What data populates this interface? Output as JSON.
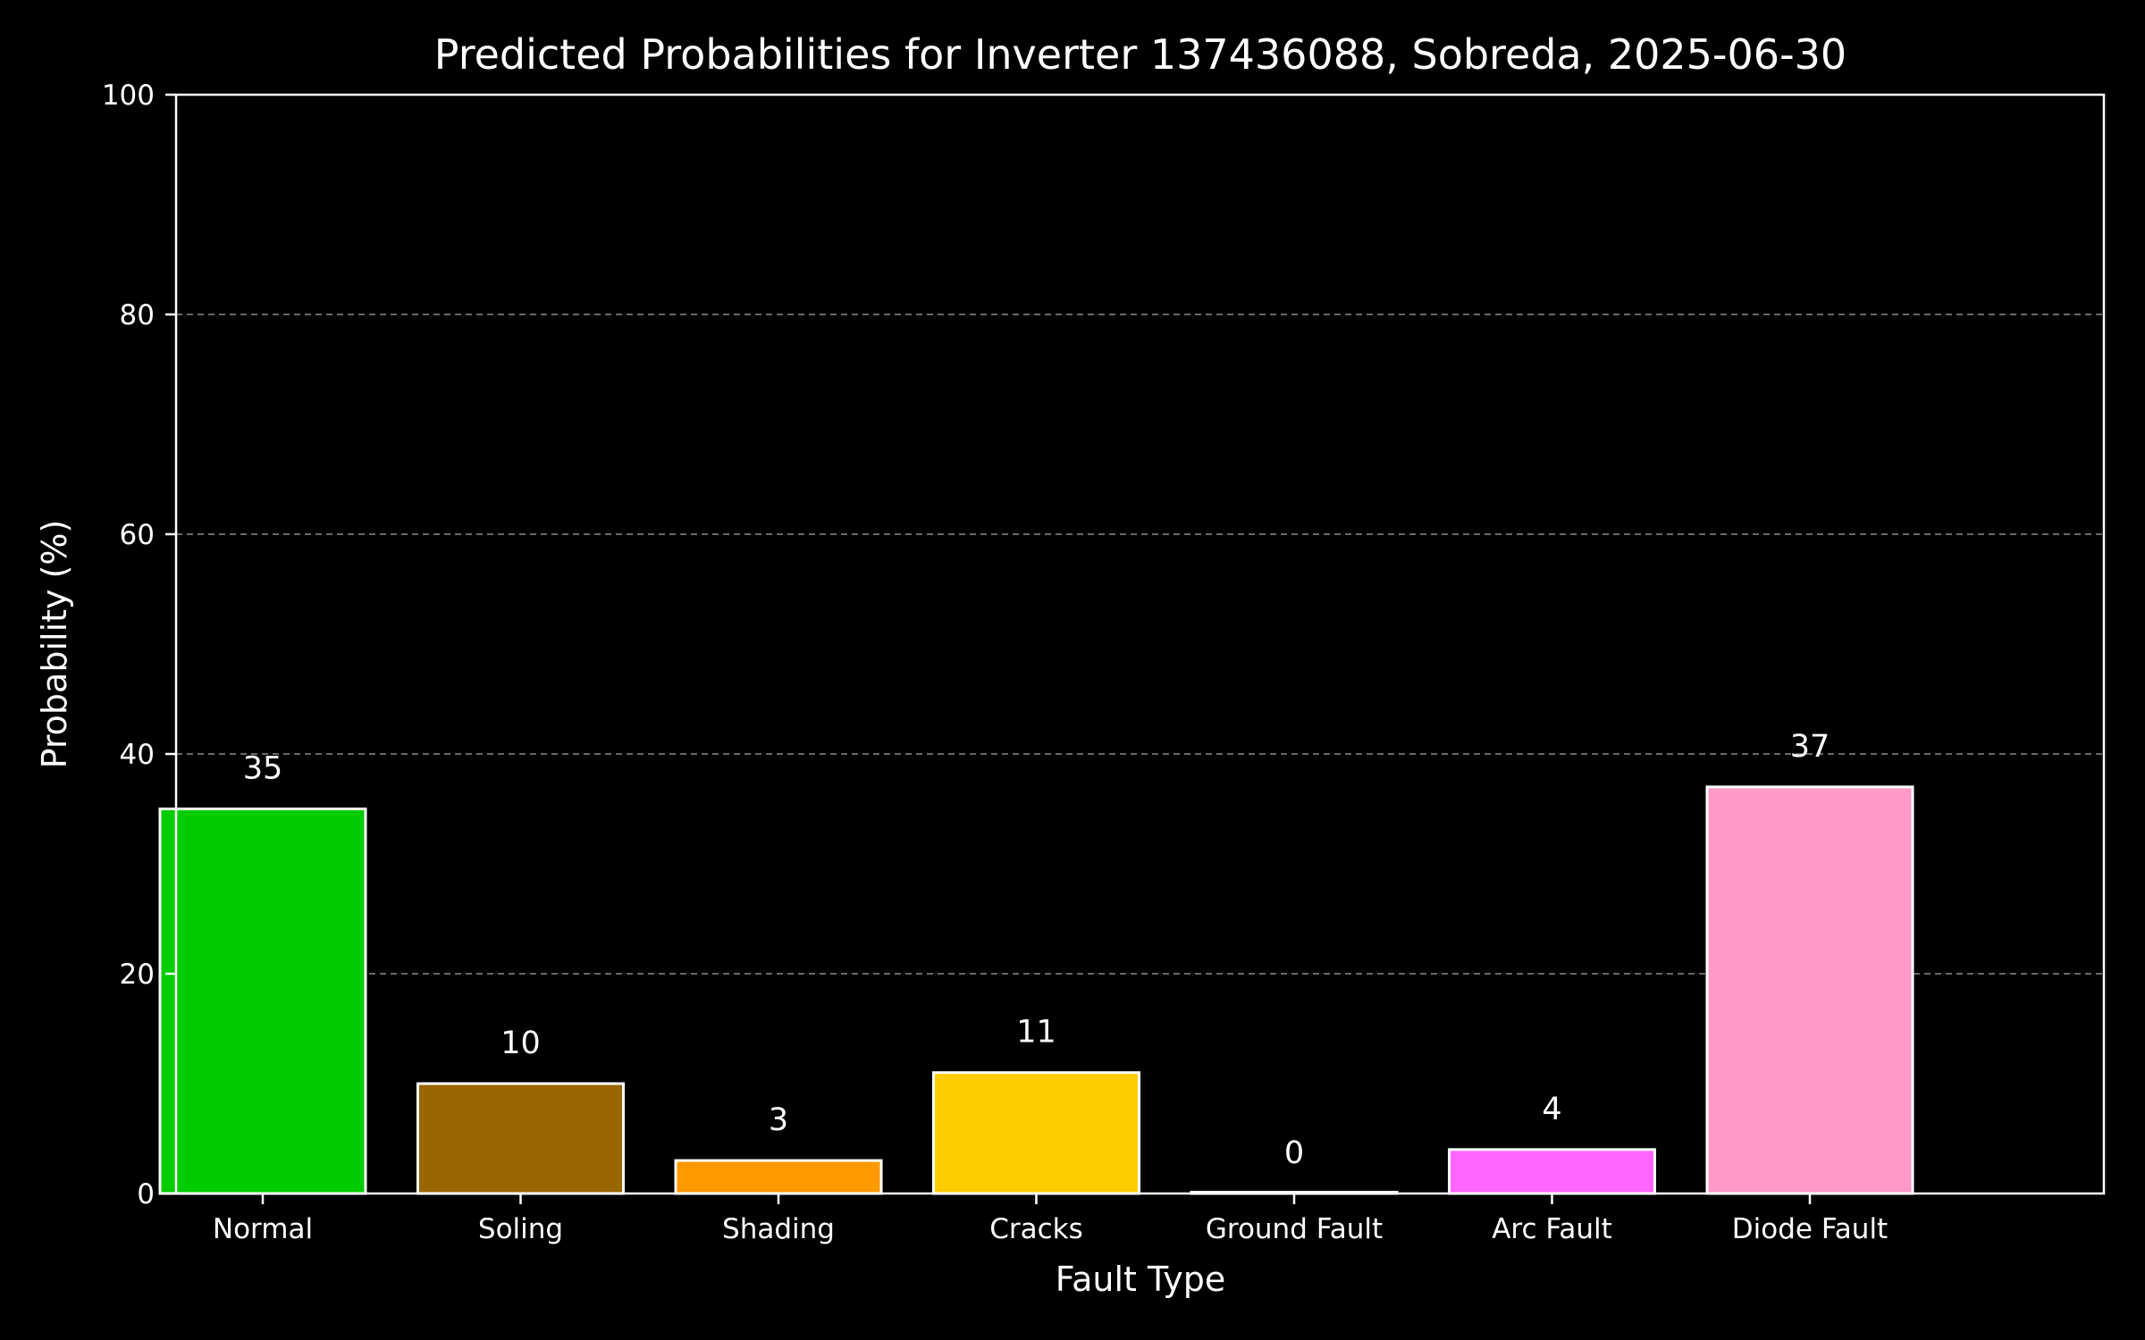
{
  "chart_data": {
    "type": "bar",
    "title": "Predicted Probabilities for Inverter 137436088, Sobreda, 2025-06-30",
    "xlabel": "Fault Type",
    "ylabel": "Probability (%)",
    "ylim": [
      0,
      100
    ],
    "yticks": [
      0,
      20,
      40,
      60,
      80,
      100
    ],
    "grid": "y-dashed",
    "categories": [
      "Normal",
      "Soling",
      "Shading",
      "Cracks",
      "Ground Fault",
      "Arc Fault",
      "Diode Fault"
    ],
    "values": [
      35,
      10,
      3,
      11,
      0,
      4,
      37
    ],
    "data_labels": [
      "35",
      "10",
      "3",
      "11",
      "0",
      "4",
      "37"
    ],
    "colors": [
      "#00cc00",
      "#996600",
      "#ff9900",
      "#ffcc00",
      "#ff0000",
      "#ff66ff",
      "#ff99c8"
    ],
    "bar_edge_color": "#ffffff",
    "background": "#000000"
  }
}
